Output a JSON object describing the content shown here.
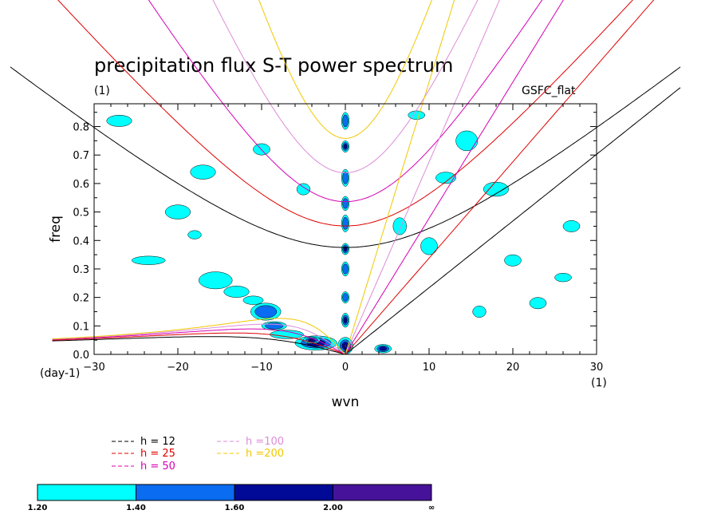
{
  "chart_data": {
    "type": "heatmap",
    "title": "precipitation flux S-T power spectrum",
    "subtitle_left": "(1)",
    "subtitle_right": "GSFC_flat",
    "xlabel": "wvn",
    "ylabel": "freq",
    "x_unit_label": "(1)",
    "y_unit_label": "(day-1)",
    "xlim": [
      -30,
      30
    ],
    "ylim": [
      0,
      0.88
    ],
    "x_ticks": [
      -30,
      -20,
      -10,
      0,
      10,
      20,
      30
    ],
    "x_tick_labels": [
      "−30",
      "−20",
      "−10",
      "0",
      "10",
      "20",
      "30"
    ],
    "y_ticks": [
      0,
      0.1,
      0.2,
      0.3,
      0.4,
      0.5,
      0.6,
      0.7,
      0.8
    ],
    "y_tick_labels": [
      "0.0",
      "0.1",
      "0.2",
      "0.3",
      "0.4",
      "0.5",
      "0.6",
      "0.7",
      "0.8"
    ],
    "contour_levels": [
      1.2,
      1.4,
      1.6,
      2.0
    ],
    "colorbar": {
      "labels": [
        "1.20",
        "1.40",
        "1.60",
        "2.00",
        "∞"
      ],
      "colors": [
        "#00ffff",
        "#0a6cf0",
        "#000a96",
        "#46129a"
      ]
    },
    "dispersion_curves": [
      {
        "label": "h = 12",
        "h": 12,
        "color": "#000000"
      },
      {
        "label": "h = 25",
        "h": 25,
        "color": "#e00000"
      },
      {
        "label": "h = 50",
        "h": 50,
        "color": "#d600b4"
      },
      {
        "label": "h =100",
        "h": 100,
        "color": "#dc8cd8"
      },
      {
        "label": "h =200",
        "h": 200,
        "color": "#f0c800"
      }
    ],
    "power_regions": [
      {
        "x": 0.0,
        "y": 0.03,
        "rx": 0.9,
        "ry": 0.03,
        "level": 4
      },
      {
        "x": 0.0,
        "y": 0.12,
        "rx": 0.45,
        "ry": 0.025,
        "level": 3
      },
      {
        "x": 0.0,
        "y": 0.2,
        "rx": 0.45,
        "ry": 0.02,
        "level": 2
      },
      {
        "x": 0.0,
        "y": 0.3,
        "rx": 0.45,
        "ry": 0.025,
        "level": 2
      },
      {
        "x": 0.0,
        "y": 0.37,
        "rx": 0.45,
        "ry": 0.02,
        "level": 3
      },
      {
        "x": 0.0,
        "y": 0.46,
        "rx": 0.45,
        "ry": 0.03,
        "level": 2
      },
      {
        "x": 0.0,
        "y": 0.53,
        "rx": 0.45,
        "ry": 0.025,
        "level": 2
      },
      {
        "x": 0.0,
        "y": 0.62,
        "rx": 0.45,
        "ry": 0.03,
        "level": 2
      },
      {
        "x": 0.0,
        "y": 0.73,
        "rx": 0.45,
        "ry": 0.02,
        "level": 3
      },
      {
        "x": 0.0,
        "y": 0.82,
        "rx": 0.45,
        "ry": 0.03,
        "level": 2
      },
      {
        "x": -3.5,
        "y": 0.04,
        "rx": 2.5,
        "ry": 0.025,
        "level": 3
      },
      {
        "x": -4.0,
        "y": 0.05,
        "rx": 1.0,
        "ry": 0.012,
        "level": 4
      },
      {
        "x": -9.5,
        "y": 0.15,
        "rx": 1.8,
        "ry": 0.03,
        "level": 2
      },
      {
        "x": -8.5,
        "y": 0.1,
        "rx": 1.5,
        "ry": 0.015,
        "level": 2
      },
      {
        "x": -7.0,
        "y": 0.07,
        "rx": 2.0,
        "ry": 0.015,
        "level": 1
      },
      {
        "x": -15.5,
        "y": 0.26,
        "rx": 2.0,
        "ry": 0.03,
        "level": 1
      },
      {
        "x": -13.0,
        "y": 0.22,
        "rx": 1.5,
        "ry": 0.02,
        "level": 1
      },
      {
        "x": -11.0,
        "y": 0.19,
        "rx": 1.2,
        "ry": 0.015,
        "level": 1
      },
      {
        "x": -23.5,
        "y": 0.33,
        "rx": 2.0,
        "ry": 0.015,
        "level": 1
      },
      {
        "x": -20.0,
        "y": 0.5,
        "rx": 1.5,
        "ry": 0.025,
        "level": 1
      },
      {
        "x": -17.0,
        "y": 0.64,
        "rx": 1.5,
        "ry": 0.025,
        "level": 1
      },
      {
        "x": -27.0,
        "y": 0.82,
        "rx": 1.5,
        "ry": 0.02,
        "level": 1
      },
      {
        "x": -10.0,
        "y": 0.72,
        "rx": 1.0,
        "ry": 0.02,
        "level": 1
      },
      {
        "x": 4.5,
        "y": 0.02,
        "rx": 1.0,
        "ry": 0.015,
        "level": 3
      },
      {
        "x": 6.5,
        "y": 0.45,
        "rx": 0.8,
        "ry": 0.03,
        "level": 1
      },
      {
        "x": 10.0,
        "y": 0.38,
        "rx": 1.0,
        "ry": 0.03,
        "level": 1
      },
      {
        "x": 14.5,
        "y": 0.75,
        "rx": 1.3,
        "ry": 0.035,
        "level": 1
      },
      {
        "x": 18.0,
        "y": 0.58,
        "rx": 1.5,
        "ry": 0.025,
        "level": 1
      },
      {
        "x": 20.0,
        "y": 0.33,
        "rx": 1.0,
        "ry": 0.02,
        "level": 1
      },
      {
        "x": 23.0,
        "y": 0.18,
        "rx": 1.0,
        "ry": 0.02,
        "level": 1
      },
      {
        "x": 27.0,
        "y": 0.45,
        "rx": 1.0,
        "ry": 0.02,
        "level": 1
      },
      {
        "x": 12.0,
        "y": 0.62,
        "rx": 1.2,
        "ry": 0.02,
        "level": 1
      },
      {
        "x": 8.5,
        "y": 0.84,
        "rx": 1.0,
        "ry": 0.015,
        "level": 1
      },
      {
        "x": 16.0,
        "y": 0.15,
        "rx": 0.8,
        "ry": 0.02,
        "level": 1
      },
      {
        "x": 26.0,
        "y": 0.27,
        "rx": 1.0,
        "ry": 0.015,
        "level": 1
      },
      {
        "x": -5.0,
        "y": 0.58,
        "rx": 0.8,
        "ry": 0.02,
        "level": 1
      },
      {
        "x": -18.0,
        "y": 0.42,
        "rx": 0.8,
        "ry": 0.015,
        "level": 1
      }
    ]
  }
}
